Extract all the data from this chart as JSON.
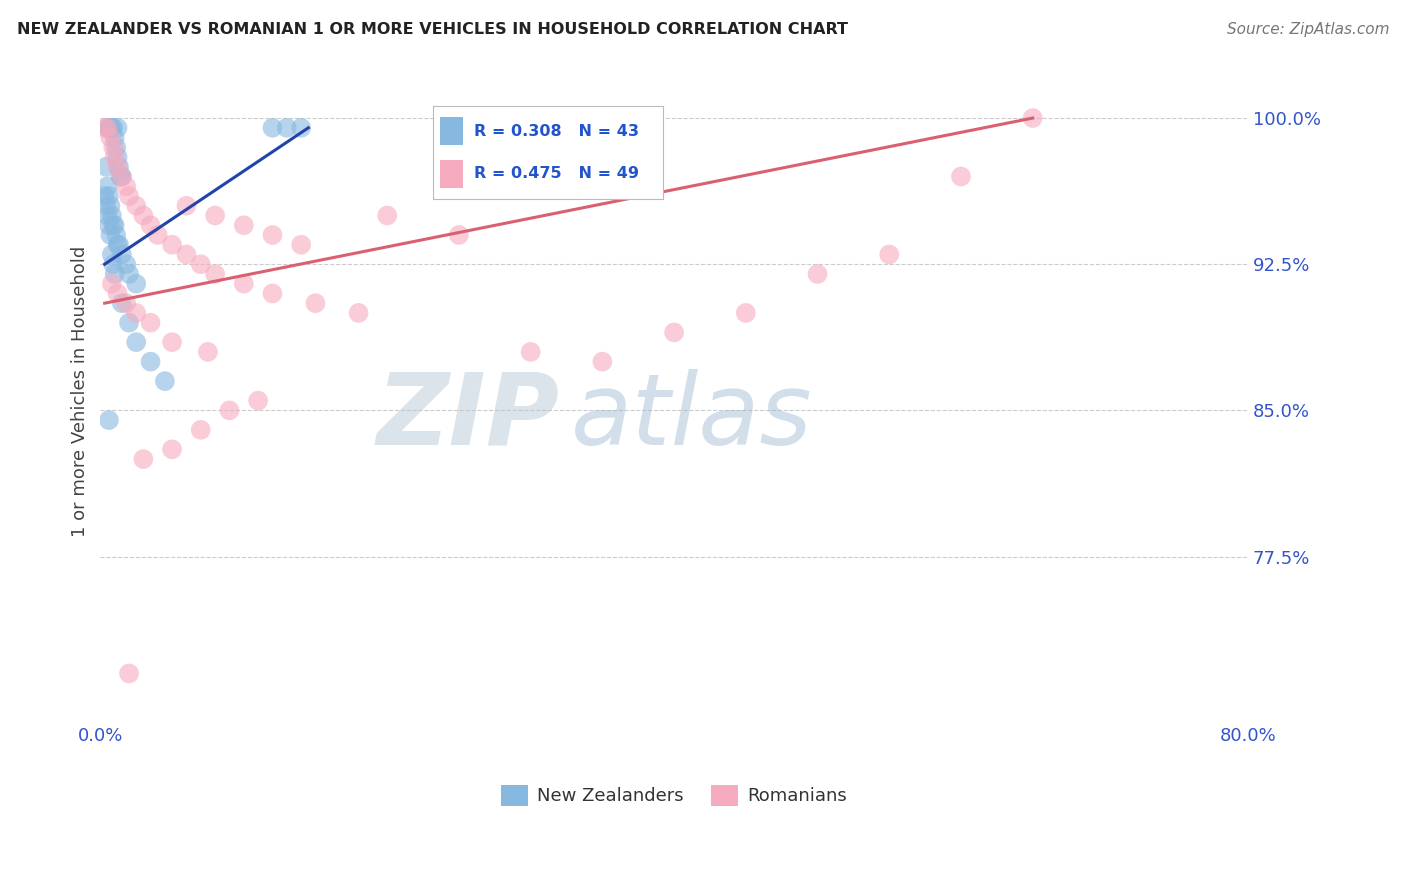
{
  "title": "NEW ZEALANDER VS ROMANIAN 1 OR MORE VEHICLES IN HOUSEHOLD CORRELATION CHART",
  "source_text": "Source: ZipAtlas.com",
  "ylabel": "1 or more Vehicles in Household",
  "xlim": [
    0.0,
    80.0
  ],
  "ylim": [
    69.0,
    103.0
  ],
  "yticks": [
    77.5,
    85.0,
    92.5,
    100.0
  ],
  "ytick_labels": [
    "77.5%",
    "85.0%",
    "92.5%",
    "100.0%"
  ],
  "xtick_positions": [
    0.0,
    20.0,
    40.0,
    60.0,
    80.0
  ],
  "xtick_labels": [
    "0.0%",
    "",
    "",
    "",
    "80.0%"
  ],
  "blue_R": 0.308,
  "blue_N": 43,
  "pink_R": 0.475,
  "pink_N": 49,
  "blue_color": "#87b8e0",
  "pink_color": "#f5aabe",
  "blue_line_color": "#2244aa",
  "pink_line_color": "#d96070",
  "legend_text_color": "#2255cc",
  "axis_color": "#3355cc",
  "title_color": "#222222",
  "source_color": "#777777",
  "grid_color": "#cccccc",
  "watermark_color": "#c8d8eb",
  "background_color": "#ffffff",
  "blue_scatter_x": [
    0.5,
    0.6,
    0.7,
    0.8,
    0.9,
    1.0,
    1.1,
    1.2,
    1.3,
    1.4,
    1.5,
    0.4,
    0.5,
    0.6,
    0.7,
    0.8,
    0.9,
    1.0,
    1.1,
    1.2,
    1.3,
    1.5,
    1.8,
    2.0,
    2.5,
    0.3,
    0.4,
    0.5,
    0.6,
    0.7,
    0.8,
    0.9,
    1.0,
    1.5,
    2.0,
    2.5,
    3.5,
    4.5,
    12.0,
    13.0,
    14.0,
    1.2,
    0.6
  ],
  "blue_scatter_y": [
    99.5,
    99.5,
    99.5,
    99.5,
    99.5,
    99.0,
    98.5,
    98.0,
    97.5,
    97.0,
    97.0,
    97.5,
    96.5,
    96.0,
    95.5,
    95.0,
    94.5,
    94.5,
    94.0,
    93.5,
    93.5,
    93.0,
    92.5,
    92.0,
    91.5,
    96.0,
    95.5,
    95.0,
    94.5,
    94.0,
    93.0,
    92.5,
    92.0,
    90.5,
    89.5,
    88.5,
    87.5,
    86.5,
    99.5,
    99.5,
    99.5,
    99.5,
    84.5
  ],
  "pink_scatter_x": [
    0.3,
    0.5,
    0.7,
    0.9,
    1.0,
    1.2,
    1.5,
    1.8,
    2.0,
    2.5,
    3.0,
    3.5,
    4.0,
    5.0,
    6.0,
    7.0,
    8.0,
    10.0,
    12.0,
    15.0,
    18.0,
    6.0,
    8.0,
    10.0,
    12.0,
    14.0,
    20.0,
    25.0,
    30.0,
    35.0,
    40.0,
    45.0,
    50.0,
    55.0,
    60.0,
    65.0,
    0.8,
    1.2,
    1.8,
    2.5,
    3.5,
    5.0,
    7.5,
    3.0,
    5.0,
    7.0,
    9.0,
    11.0,
    2.0
  ],
  "pink_scatter_y": [
    99.5,
    99.5,
    99.0,
    98.5,
    98.0,
    97.5,
    97.0,
    96.5,
    96.0,
    95.5,
    95.0,
    94.5,
    94.0,
    93.5,
    93.0,
    92.5,
    92.0,
    91.5,
    91.0,
    90.5,
    90.0,
    95.5,
    95.0,
    94.5,
    94.0,
    93.5,
    95.0,
    94.0,
    88.0,
    87.5,
    89.0,
    90.0,
    92.0,
    93.0,
    97.0,
    100.0,
    91.5,
    91.0,
    90.5,
    90.0,
    89.5,
    88.5,
    88.0,
    82.5,
    83.0,
    84.0,
    85.0,
    85.5,
    71.5
  ],
  "blue_line_x0": 0.3,
  "blue_line_x1": 14.5,
  "blue_line_y0": 92.5,
  "blue_line_y1": 99.5,
  "pink_line_x0": 0.3,
  "pink_line_x1": 65.0,
  "pink_line_y0": 90.5,
  "pink_line_y1": 100.0
}
